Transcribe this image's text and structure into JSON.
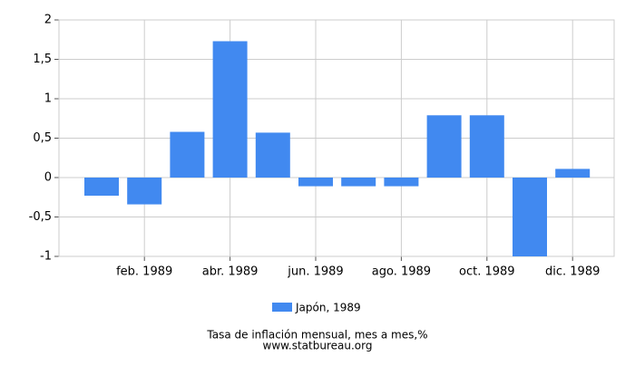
{
  "chart_data": {
    "type": "bar",
    "title": "Tasa de inflación mensual, mes a mes,%",
    "source": "www.statbureau.org",
    "categories": [
      null,
      "feb. 1989",
      null,
      "abr. 1989",
      null,
      "jun. 1989",
      null,
      "ago. 1989",
      null,
      "oct. 1989",
      null,
      "dic. 1989"
    ],
    "series": [
      {
        "name": "Japón, 1989",
        "color": "#4189f0",
        "values": [
          -0.23,
          -0.34,
          0.58,
          1.73,
          0.57,
          -0.11,
          -0.11,
          -0.11,
          0.79,
          0.79,
          -1.0,
          0.11
        ]
      }
    ],
    "ylim": [
      -1,
      2
    ],
    "yticks": [
      -1,
      {
        "value": -0.5,
        "label": "-0,5"
      },
      0,
      {
        "value": 0.5,
        "label": "0,5"
      },
      1,
      {
        "value": 1.5,
        "label": "1,5"
      },
      2
    ],
    "grid": true
  }
}
